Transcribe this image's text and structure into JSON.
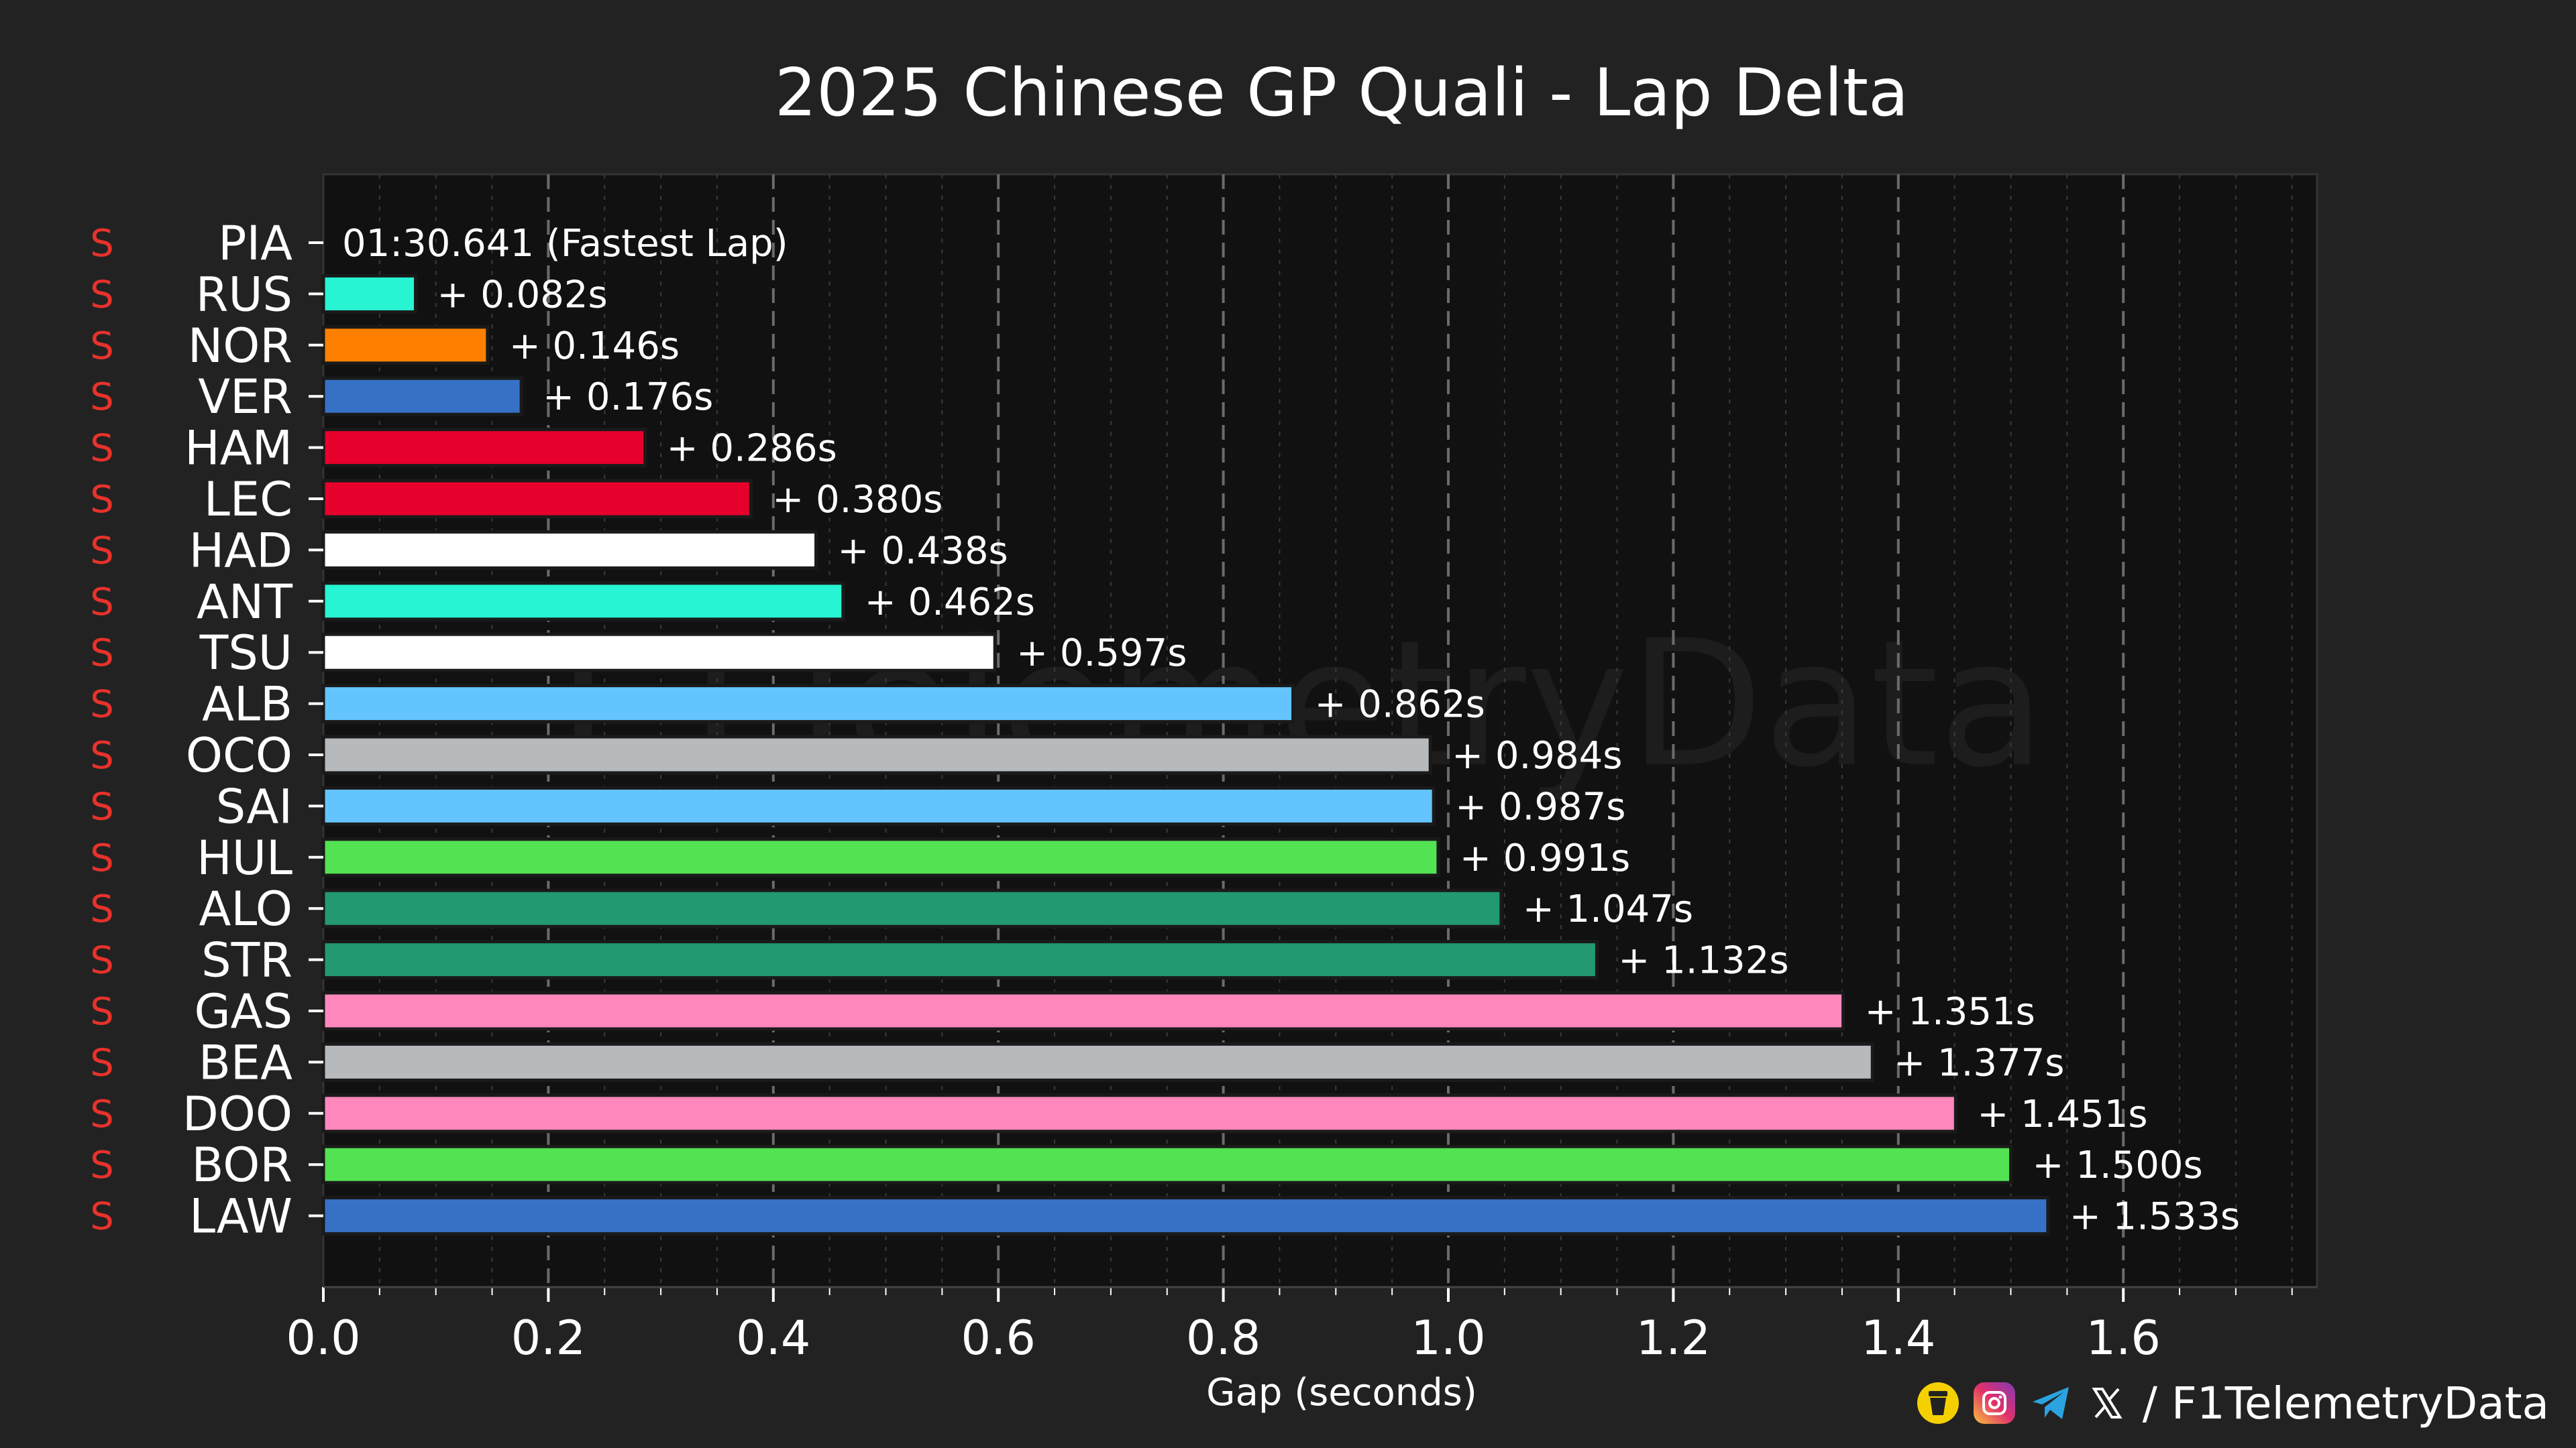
{
  "chart_data": {
    "type": "bar",
    "orientation": "horizontal",
    "title": "2025 Chinese GP Quali - Lap Delta",
    "xlabel": "Gap (seconds)",
    "ylabel": "",
    "xlim": [
      0,
      1.77
    ],
    "xticks": [
      "0.0",
      "0.2",
      "0.4",
      "0.6",
      "0.8",
      "1.0",
      "1.2",
      "1.4",
      "1.6"
    ],
    "tick_values": [
      0,
      0.2,
      0.4,
      0.6,
      0.8,
      1.0,
      1.2,
      1.4,
      1.6
    ],
    "grid": true,
    "watermark": "F1TelemetryData",
    "fastest_lap_label": "01:30.641 (Fastest Lap)",
    "drivers": [
      {
        "code": "PIA",
        "tyre": "S",
        "gap": 0.0,
        "label": "01:30.641 (Fastest Lap)",
        "color": "#ff8000"
      },
      {
        "code": "RUS",
        "tyre": "S",
        "gap": 0.082,
        "label": "+ 0.082s",
        "color": "#27f4d2"
      },
      {
        "code": "NOR",
        "tyre": "S",
        "gap": 0.146,
        "label": "+ 0.146s",
        "color": "#ff8000"
      },
      {
        "code": "VER",
        "tyre": "S",
        "gap": 0.176,
        "label": "+ 0.176s",
        "color": "#3671c6"
      },
      {
        "code": "HAM",
        "tyre": "S",
        "gap": 0.286,
        "label": "+ 0.286s",
        "color": "#e8002d"
      },
      {
        "code": "LEC",
        "tyre": "S",
        "gap": 0.38,
        "label": "+ 0.380s",
        "color": "#e8002d"
      },
      {
        "code": "HAD",
        "tyre": "S",
        "gap": 0.438,
        "label": "+ 0.438s",
        "color": "#ffffff"
      },
      {
        "code": "ANT",
        "tyre": "S",
        "gap": 0.462,
        "label": "+ 0.462s",
        "color": "#27f4d2"
      },
      {
        "code": "TSU",
        "tyre": "S",
        "gap": 0.597,
        "label": "+ 0.597s",
        "color": "#ffffff"
      },
      {
        "code": "ALB",
        "tyre": "S",
        "gap": 0.862,
        "label": "+ 0.862s",
        "color": "#64c4ff"
      },
      {
        "code": "OCO",
        "tyre": "S",
        "gap": 0.984,
        "label": "+ 0.984s",
        "color": "#b6babd"
      },
      {
        "code": "SAI",
        "tyre": "S",
        "gap": 0.987,
        "label": "+ 0.987s",
        "color": "#64c4ff"
      },
      {
        "code": "HUL",
        "tyre": "S",
        "gap": 0.991,
        "label": "+ 0.991s",
        "color": "#52e252"
      },
      {
        "code": "ALO",
        "tyre": "S",
        "gap": 1.047,
        "label": "+ 1.047s",
        "color": "#229971"
      },
      {
        "code": "STR",
        "tyre": "S",
        "gap": 1.132,
        "label": "+ 1.132s",
        "color": "#229971"
      },
      {
        "code": "GAS",
        "tyre": "S",
        "gap": 1.351,
        "label": "+ 1.351s",
        "color": "#ff87bc"
      },
      {
        "code": "BEA",
        "tyre": "S",
        "gap": 1.377,
        "label": "+ 1.377s",
        "color": "#b6babd"
      },
      {
        "code": "DOO",
        "tyre": "S",
        "gap": 1.451,
        "label": "+ 1.451s",
        "color": "#ff87bc"
      },
      {
        "code": "BOR",
        "tyre": "S",
        "gap": 1.5,
        "label": "+ 1.500s",
        "color": "#52e252"
      },
      {
        "code": "LAW",
        "tyre": "S",
        "gap": 1.533,
        "label": "+ 1.533s",
        "color": "#3671c6"
      }
    ]
  },
  "footer": {
    "handle": "/ F1TelemetryData",
    "icons": [
      "tip-jar-icon",
      "instagram-icon",
      "telegram-icon",
      "x-icon"
    ]
  }
}
